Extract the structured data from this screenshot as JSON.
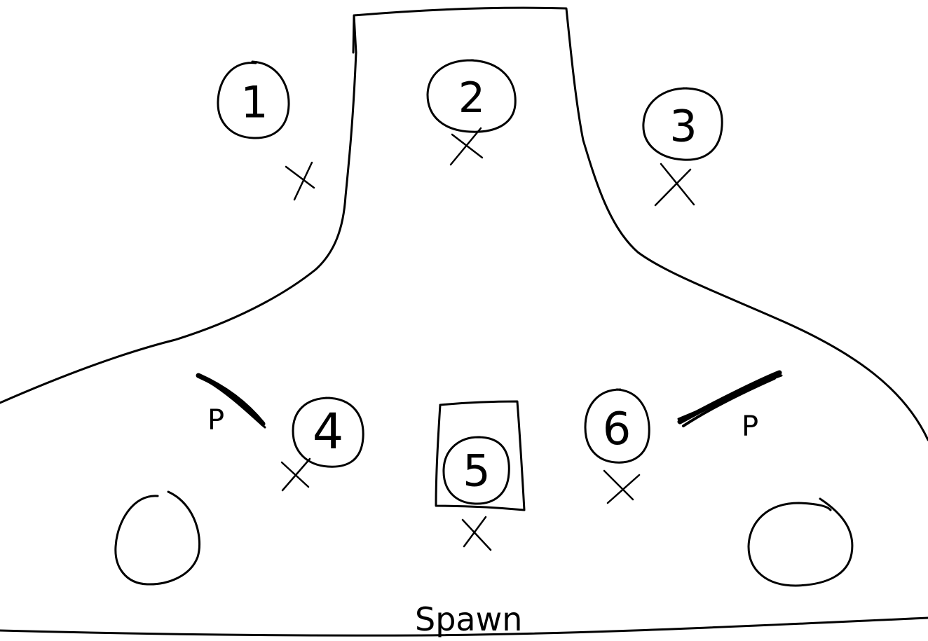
{
  "map": {
    "ink_color": "#000000",
    "background": "#ffffff",
    "spots": [
      {
        "number": "1"
      },
      {
        "number": "2"
      },
      {
        "number": "3"
      },
      {
        "number": "4"
      },
      {
        "number": "5"
      },
      {
        "number": "6"
      }
    ],
    "markers": {
      "left": "P",
      "right": "P"
    },
    "spawn_label": "Spawn"
  }
}
